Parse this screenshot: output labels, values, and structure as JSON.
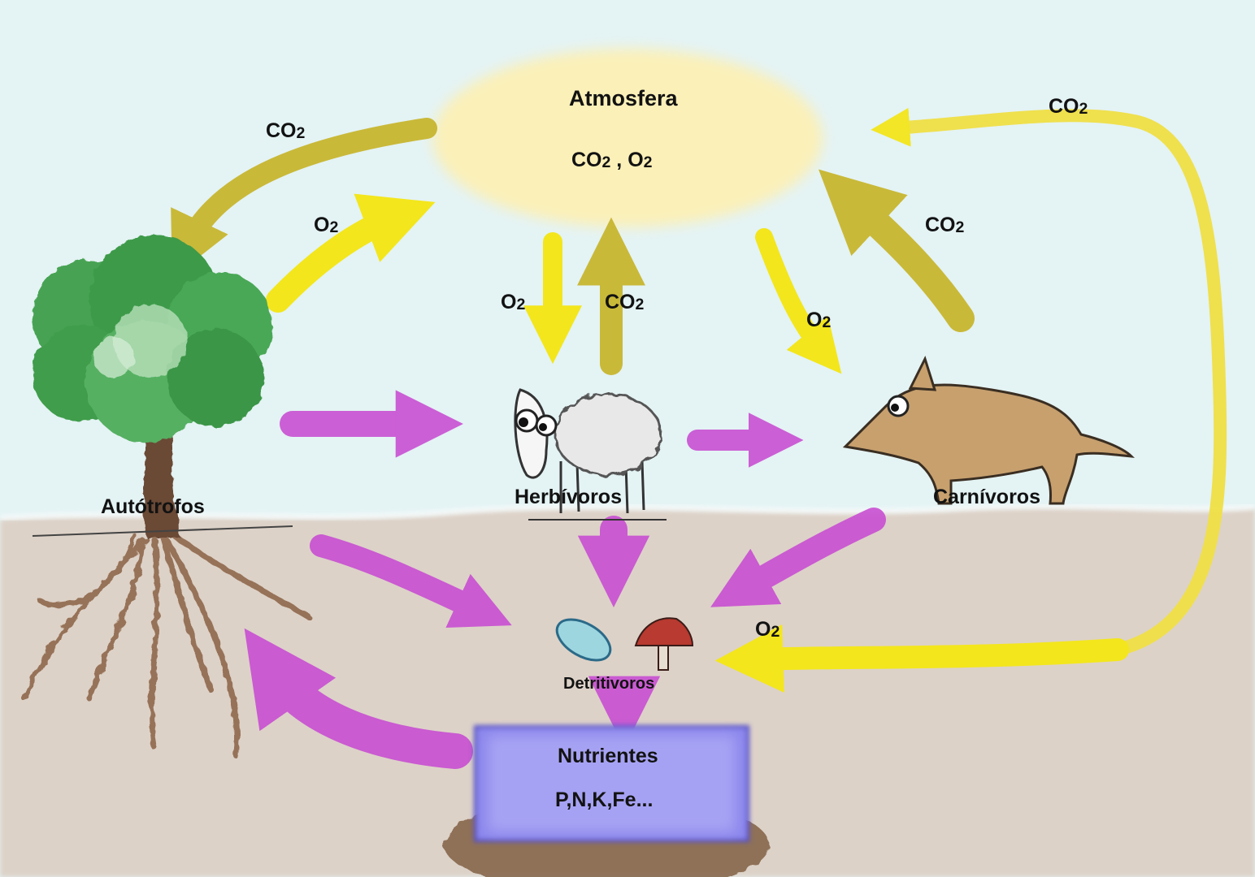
{
  "nodes": {
    "atmosphere": {
      "title": "Atmosfera",
      "content_main": "CO",
      "content_sub": "2",
      "content_sep": " , O",
      "content_sub2": "2"
    },
    "autotrophs": {
      "label": "Autótrofos"
    },
    "herbivores": {
      "label": "Herbívoros"
    },
    "carnivores": {
      "label": "Carnívoros"
    },
    "detritivores": {
      "label": "Detritivoros"
    },
    "nutrients": {
      "title": "Nutrientes",
      "content": "P,N,K,Fe..."
    }
  },
  "gas": {
    "co2_main": "CO",
    "o2_main": "O",
    "subscript": "2"
  },
  "colors": {
    "sky": "#e4f3f4",
    "ground": "#ddd2c8",
    "atmosphere_fill": "#fbf0b8",
    "co2_arrow": "#c8b630",
    "o2_arrow": "#f3e61c",
    "food_arrow": "#c94fd2",
    "nutrients_fill": "#8b86ec",
    "foliage": "#3c9a48",
    "trunk": "#6b4a34",
    "fox": "#c7a06e"
  }
}
